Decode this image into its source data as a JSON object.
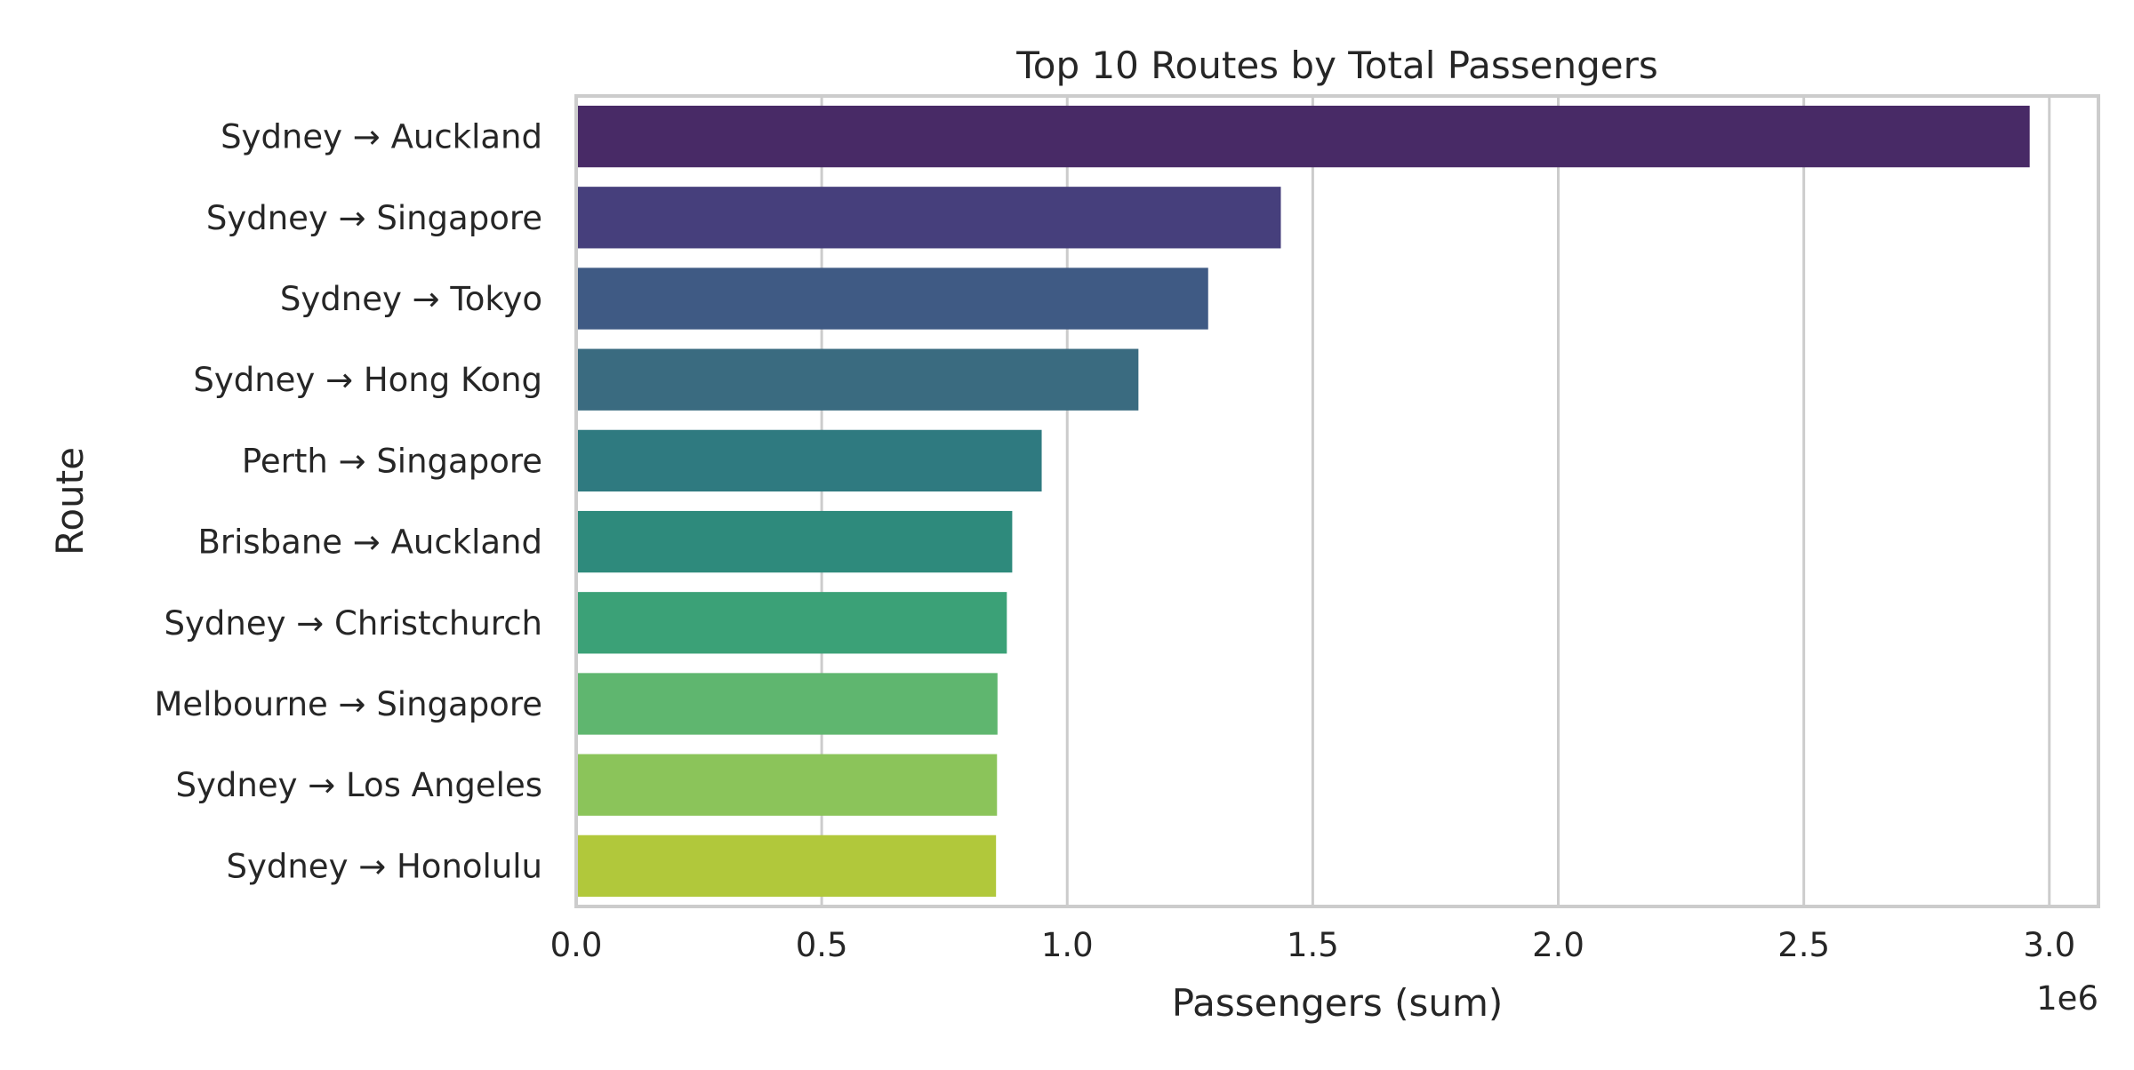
{
  "chart_data": {
    "type": "bar",
    "orientation": "horizontal",
    "title": "Top 10 Routes by Total Passengers",
    "xlabel": "Passengers (sum)",
    "ylabel": "Route",
    "x_offset_label": "1e6",
    "xlim": [
      0,
      3.1
    ],
    "xticks": [
      "0.0",
      "0.5",
      "1.0",
      "1.5",
      "2.0",
      "2.5",
      "3.0"
    ],
    "grid": "vertical",
    "categories": [
      "Sydney → Auckland",
      "Sydney → Singapore",
      "Sydney → Tokyo",
      "Sydney → Hong Kong",
      "Perth → Singapore",
      "Brisbane → Auckland",
      "Sydney → Christchurch",
      "Melbourne → Singapore",
      "Sydney → Los Angeles",
      "Sydney → Honolulu"
    ],
    "values": [
      2.96,
      1.435,
      1.287,
      1.145,
      0.948,
      0.888,
      0.877,
      0.858,
      0.857,
      0.855
    ],
    "colors": [
      "#482a66",
      "#463f7c",
      "#3f5a84",
      "#3a6b80",
      "#2f7a80",
      "#2e8a7c",
      "#3ba177",
      "#5fb66f",
      "#8bc45a",
      "#b1c83b"
    ]
  }
}
